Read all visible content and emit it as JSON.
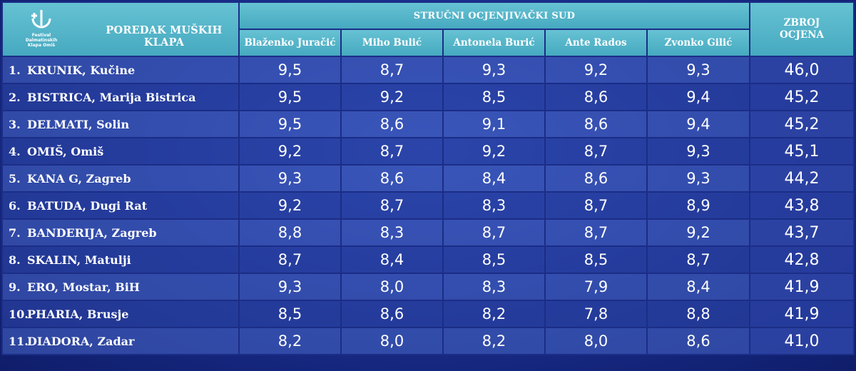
{
  "header": {
    "title": "POREDAK MUŠKIH KLAPA",
    "jury_title": "STRUČNI OCJENJIVAČKI SUD",
    "total_label_line1": "ZBROJ",
    "total_label_line2": "OCJENA",
    "logo_text_line1": "Festival",
    "logo_text_line2": "Dalmatinskih",
    "logo_text_line3": "Klapa Omiš"
  },
  "judges": [
    "Blaženko Juračić",
    "Miho Bulić",
    "Antonela Burić",
    "Ante Rados",
    "Zvonko Gilić"
  ],
  "rows": [
    {
      "rank": "1.",
      "name": "KRUNIK, Kučine",
      "scores": [
        "9,5",
        "8,7",
        "9,3",
        "9,2",
        "9,3"
      ],
      "total": "46,0"
    },
    {
      "rank": "2.",
      "name": "BISTRICA, Marija Bistrica",
      "scores": [
        "9,5",
        "9,2",
        "8,5",
        "8,6",
        "9,4"
      ],
      "total": "45,2"
    },
    {
      "rank": "3.",
      "name": "DELMATI, Solin",
      "scores": [
        "9,5",
        "8,6",
        "9,1",
        "8,6",
        "9,4"
      ],
      "total": "45,2"
    },
    {
      "rank": "4.",
      "name": "OMIŠ, Omiš",
      "scores": [
        "9,2",
        "8,7",
        "9,2",
        "8,7",
        "9,3"
      ],
      "total": "45,1"
    },
    {
      "rank": "5.",
      "name": "KANA G, Zagreb",
      "scores": [
        "9,3",
        "8,6",
        "8,4",
        "8,6",
        "9,3"
      ],
      "total": "44,2"
    },
    {
      "rank": "6.",
      "name": "BATUDA, Dugi Rat",
      "scores": [
        "9,2",
        "8,7",
        "8,3",
        "8,7",
        "8,9"
      ],
      "total": "43,8"
    },
    {
      "rank": "7.",
      "name": "BANDERIJA, Zagreb",
      "scores": [
        "8,8",
        "8,3",
        "8,7",
        "8,7",
        "9,2"
      ],
      "total": "43,7"
    },
    {
      "rank": "8.",
      "name": "SKALIN, Matulji",
      "scores": [
        "8,7",
        "8,4",
        "8,5",
        "8,5",
        "8,7"
      ],
      "total": "42,8"
    },
    {
      "rank": "9.",
      "name": "ERO, Mostar, BiH",
      "scores": [
        "9,3",
        "8,0",
        "8,3",
        "7,9",
        "8,4"
      ],
      "total": "41,9"
    },
    {
      "rank": "10.",
      "name": "PHARIA, Brusje",
      "scores": [
        "8,5",
        "8,6",
        "8,2",
        "7,8",
        "8,8"
      ],
      "total": "41,9"
    },
    {
      "rank": "11.",
      "name": "DIADORA, Zadar",
      "scores": [
        "8,2",
        "8,0",
        "8,2",
        "8,0",
        "8,6"
      ],
      "total": "41,0"
    }
  ]
}
